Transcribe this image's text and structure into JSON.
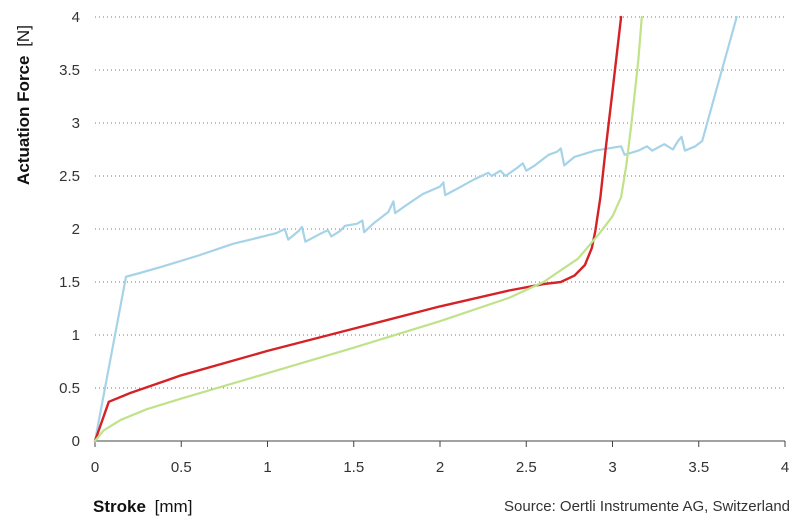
{
  "chart_data": {
    "type": "line",
    "xlabel": {
      "name": "Stroke",
      "unit": "[mm]"
    },
    "ylabel": {
      "name": "Actuation Force",
      "unit": "[N]"
    },
    "xlim": [
      0,
      4
    ],
    "ylim": [
      0,
      4
    ],
    "xticks": [
      "0",
      "0.5",
      "1",
      "1.5",
      "2",
      "2.5",
      "3",
      "3.5",
      "4"
    ],
    "yticks": [
      "0",
      "0.5",
      "1",
      "1.5",
      "2",
      "2.5",
      "3",
      "3.5",
      "4"
    ],
    "grid": "horizontal-dotted",
    "source": "Source: Oertli Instrumente AG, Switzerland",
    "series": [
      {
        "color": "#a6d3e8",
        "points": [
          [
            0,
            0
          ],
          [
            0.18,
            1.55
          ],
          [
            0.25,
            1.58
          ],
          [
            0.4,
            1.65
          ],
          [
            0.6,
            1.75
          ],
          [
            0.8,
            1.86
          ],
          [
            0.95,
            1.92
          ],
          [
            1.05,
            1.96
          ],
          [
            1.1,
            2.0
          ],
          [
            1.12,
            1.9
          ],
          [
            1.18,
            1.98
          ],
          [
            1.2,
            2.02
          ],
          [
            1.22,
            1.88
          ],
          [
            1.3,
            1.95
          ],
          [
            1.35,
            1.99
          ],
          [
            1.37,
            1.93
          ],
          [
            1.42,
            1.98
          ],
          [
            1.45,
            2.03
          ],
          [
            1.52,
            2.05
          ],
          [
            1.55,
            2.08
          ],
          [
            1.56,
            1.97
          ],
          [
            1.62,
            2.06
          ],
          [
            1.7,
            2.16
          ],
          [
            1.73,
            2.26
          ],
          [
            1.74,
            2.15
          ],
          [
            1.8,
            2.22
          ],
          [
            1.9,
            2.33
          ],
          [
            2.0,
            2.4
          ],
          [
            2.02,
            2.44
          ],
          [
            2.03,
            2.32
          ],
          [
            2.1,
            2.38
          ],
          [
            2.2,
            2.47
          ],
          [
            2.28,
            2.53
          ],
          [
            2.3,
            2.5
          ],
          [
            2.35,
            2.55
          ],
          [
            2.38,
            2.5
          ],
          [
            2.45,
            2.58
          ],
          [
            2.48,
            2.62
          ],
          [
            2.5,
            2.55
          ],
          [
            2.55,
            2.6
          ],
          [
            2.63,
            2.7
          ],
          [
            2.68,
            2.73
          ],
          [
            2.7,
            2.76
          ],
          [
            2.72,
            2.6
          ],
          [
            2.78,
            2.68
          ],
          [
            2.9,
            2.74
          ],
          [
            3.05,
            2.78
          ],
          [
            3.07,
            2.7
          ],
          [
            3.15,
            2.74
          ],
          [
            3.2,
            2.78
          ],
          [
            3.23,
            2.74
          ],
          [
            3.3,
            2.8
          ],
          [
            3.35,
            2.75
          ],
          [
            3.38,
            2.83
          ],
          [
            3.4,
            2.87
          ],
          [
            3.42,
            2.74
          ],
          [
            3.48,
            2.78
          ],
          [
            3.52,
            2.83
          ],
          [
            3.6,
            3.3
          ],
          [
            3.72,
            4.0
          ]
        ]
      },
      {
        "color": "#d42226",
        "points": [
          [
            0,
            0
          ],
          [
            0.08,
            0.37
          ],
          [
            0.2,
            0.45
          ],
          [
            0.5,
            0.62
          ],
          [
            1.0,
            0.85
          ],
          [
            1.5,
            1.06
          ],
          [
            2.0,
            1.27
          ],
          [
            2.4,
            1.42
          ],
          [
            2.6,
            1.48
          ],
          [
            2.7,
            1.5
          ],
          [
            2.78,
            1.56
          ],
          [
            2.84,
            1.66
          ],
          [
            2.88,
            1.82
          ],
          [
            2.9,
            1.98
          ],
          [
            2.93,
            2.3
          ],
          [
            2.96,
            2.75
          ],
          [
            3.0,
            3.3
          ],
          [
            3.05,
            4.0
          ]
        ]
      },
      {
        "color": "#bfe28a",
        "points": [
          [
            0,
            0
          ],
          [
            0.05,
            0.1
          ],
          [
            0.15,
            0.2
          ],
          [
            0.3,
            0.3
          ],
          [
            0.5,
            0.4
          ],
          [
            1.0,
            0.64
          ],
          [
            1.5,
            0.88
          ],
          [
            2.0,
            1.13
          ],
          [
            2.4,
            1.35
          ],
          [
            2.6,
            1.5
          ],
          [
            2.8,
            1.72
          ],
          [
            2.92,
            1.95
          ],
          [
            3.0,
            2.12
          ],
          [
            3.05,
            2.3
          ],
          [
            3.08,
            2.6
          ],
          [
            3.11,
            3.0
          ],
          [
            3.15,
            3.6
          ],
          [
            3.17,
            4.0
          ]
        ]
      }
    ]
  }
}
